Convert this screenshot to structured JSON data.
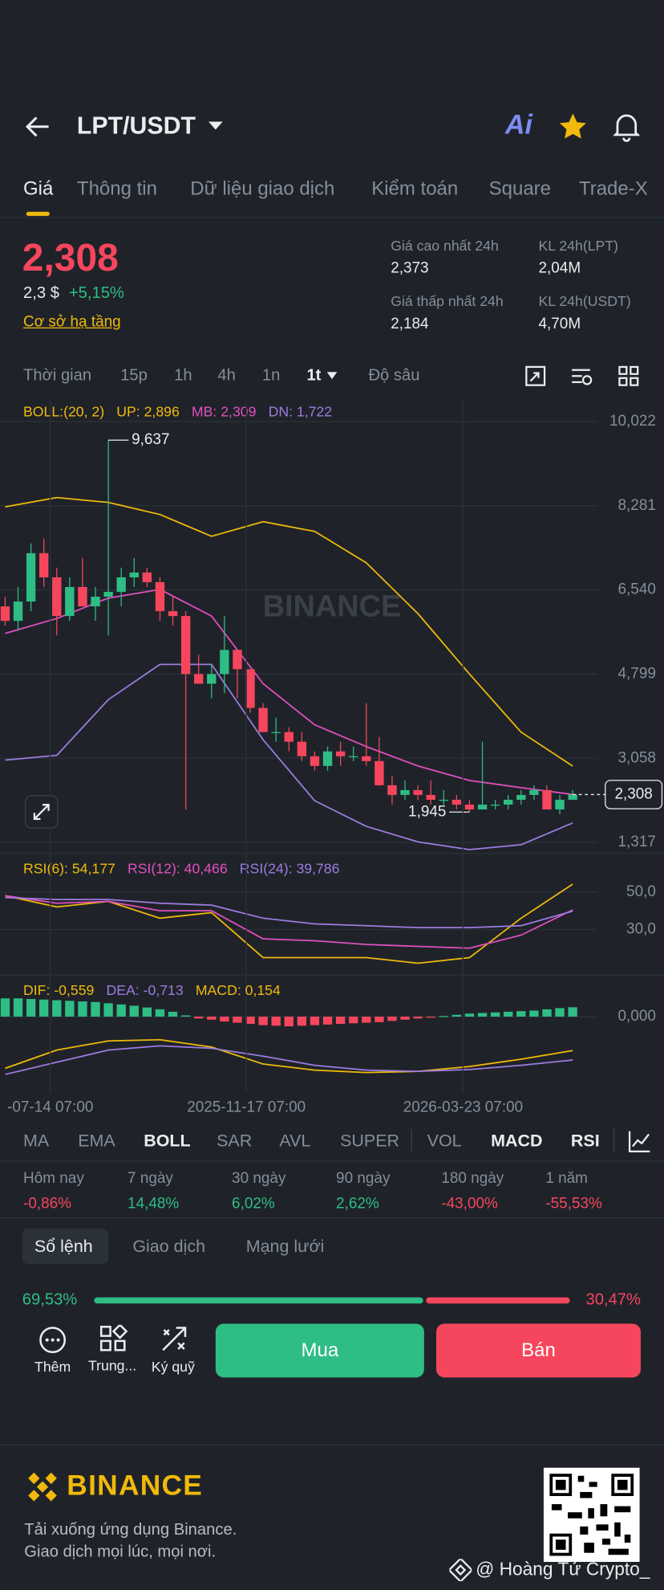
{
  "header": {
    "pair": "LPT/USDT",
    "ai": "Ai"
  },
  "tabs": [
    "Giá",
    "Thông tin",
    "Dữ liệu giao dịch",
    "Kiểm toán",
    "Square",
    "Trade-X"
  ],
  "price": {
    "last": "2,308",
    "usd": "2,3 $",
    "change": "+5,15%",
    "link": "Cơ sở hạ tầng"
  },
  "stats": [
    {
      "label": "Giá cao nhất 24h",
      "value": "2,373"
    },
    {
      "label": "KL 24h(LPT)",
      "value": "2,04M"
    },
    {
      "label": "Giá thấp nhất 24h",
      "value": "2,184"
    },
    {
      "label": "KL 24h(USDT)",
      "value": "4,70M"
    }
  ],
  "intervals": [
    "Thời gian",
    "15p",
    "1h",
    "4h",
    "1n",
    "1t",
    "Độ sâu"
  ],
  "chart_data": [
    {
      "type": "candlestick",
      "indicator": "BOLL:(20, 2)",
      "indicator_color": "#f0b90b",
      "up_color": "#2ebd85",
      "down_color": "#f6465d",
      "xlim": [
        -0.4,
        45.9
      ],
      "ylim": [
        1.09,
        10.46
      ],
      "yticks": [
        {
          "value": 10.022,
          "label": "10,022"
        },
        {
          "value": 8.281,
          "label": "8,281"
        },
        {
          "value": 6.54,
          "label": "6,540"
        },
        {
          "value": 4.799,
          "label": "4,799"
        },
        {
          "value": 3.058,
          "label": "3,058"
        },
        {
          "value": 1.317,
          "label": "1,317"
        }
      ],
      "grid": true,
      "candles": [
        [
          6.2,
          6.4,
          5.8,
          5.9
        ],
        [
          5.9,
          6.6,
          5.7,
          6.3
        ],
        [
          6.3,
          7.5,
          6.1,
          7.3
        ],
        [
          7.3,
          7.6,
          6.6,
          6.8
        ],
        [
          6.8,
          7.0,
          5.6,
          6.0
        ],
        [
          6.0,
          6.8,
          5.9,
          6.6
        ],
        [
          6.6,
          7.2,
          6.2,
          6.2
        ],
        [
          6.2,
          6.6,
          5.9,
          6.4
        ],
        [
          6.4,
          9.637,
          5.6,
          6.5
        ],
        [
          6.5,
          7.0,
          6.2,
          6.8
        ],
        [
          6.8,
          7.2,
          6.6,
          6.9
        ],
        [
          6.9,
          7.0,
          6.6,
          6.7
        ],
        [
          6.7,
          6.8,
          5.9,
          6.1
        ],
        [
          6.1,
          6.4,
          5.8,
          6.0
        ],
        [
          6.0,
          6.1,
          2.0,
          4.8
        ],
        [
          4.8,
          5.2,
          4.6,
          4.6
        ],
        [
          4.6,
          5.0,
          4.3,
          4.8
        ],
        [
          4.8,
          6.0,
          4.4,
          5.3
        ],
        [
          5.3,
          5.3,
          4.3,
          4.9
        ],
        [
          4.9,
          4.9,
          4.0,
          4.1
        ],
        [
          4.1,
          4.2,
          3.6,
          3.6
        ],
        [
          3.6,
          3.9,
          3.4,
          3.6
        ],
        [
          3.6,
          3.7,
          3.2,
          3.4
        ],
        [
          3.4,
          3.6,
          3.0,
          3.1
        ],
        [
          3.1,
          3.2,
          2.8,
          2.9
        ],
        [
          2.9,
          3.3,
          2.8,
          3.2
        ],
        [
          3.2,
          3.4,
          2.9,
          3.1
        ],
        [
          3.1,
          3.3,
          3.0,
          3.1
        ],
        [
          3.1,
          4.2,
          2.9,
          3.0
        ],
        [
          3.0,
          3.5,
          2.5,
          2.5
        ],
        [
          2.5,
          2.7,
          2.1,
          2.3
        ],
        [
          2.3,
          2.6,
          2.2,
          2.4
        ],
        [
          2.4,
          2.5,
          2.2,
          2.3
        ],
        [
          2.3,
          2.6,
          2.1,
          2.2
        ],
        [
          2.2,
          2.4,
          2.1,
          2.2
        ],
        [
          2.2,
          2.3,
          2.0,
          2.1
        ],
        [
          2.1,
          2.2,
          1.945,
          2.0
        ],
        [
          2.0,
          3.4,
          2.0,
          2.1
        ],
        [
          2.1,
          2.2,
          2.0,
          2.1
        ],
        [
          2.1,
          2.3,
          2.0,
          2.2
        ],
        [
          2.2,
          2.4,
          2.1,
          2.3
        ],
        [
          2.3,
          2.5,
          2.2,
          2.4
        ],
        [
          2.4,
          2.5,
          2.0,
          2.0
        ],
        [
          2.0,
          2.3,
          1.9,
          2.2
        ],
        [
          2.2,
          2.4,
          2.2,
          2.308
        ]
      ],
      "x": [
        0,
        4,
        8,
        12,
        16,
        20,
        24,
        28,
        32,
        36,
        40,
        44
      ],
      "series": [
        {
          "name": "UP: 2,896",
          "color": "#f0b90b",
          "values": [
            8.26,
            8.45,
            8.35,
            8.1,
            7.65,
            7.95,
            7.75,
            7.1,
            6.05,
            4.8,
            3.6,
            2.896
          ]
        },
        {
          "name": "MB: 2,309",
          "color": "#e04fbf",
          "values": [
            5.64,
            5.95,
            6.37,
            6.55,
            6.0,
            4.6,
            3.75,
            3.3,
            2.9,
            2.6,
            2.45,
            2.309
          ]
        },
        {
          "name": "DN: 1,722",
          "color": "#9d7be0",
          "values": [
            3.02,
            3.12,
            4.27,
            5.0,
            5.0,
            3.44,
            2.18,
            1.65,
            1.33,
            1.17,
            1.27,
            1.722
          ]
        }
      ],
      "annotations": [
        {
          "x": 8,
          "value": 9.637,
          "label": "9,637"
        },
        {
          "x": 36,
          "value": 1.945,
          "label": "1,945"
        }
      ],
      "last": {
        "value": 2.308,
        "label": "2,308"
      }
    },
    {
      "type": "line",
      "xlim": [
        -0.4,
        45.9
      ],
      "ylim": [
        5.7,
        56.5
      ],
      "yticks": [
        {
          "value": 50,
          "label": "50,0"
        },
        {
          "value": 30,
          "label": "30,0"
        }
      ],
      "x": [
        0,
        4,
        8,
        12,
        16,
        20,
        24,
        28,
        32,
        36,
        40,
        44
      ],
      "series": [
        {
          "name": "RSI(6): 54,177",
          "color": "#f0b90b",
          "values": [
            48,
            42,
            45,
            36,
            39,
            15,
            15,
            15,
            12,
            15,
            36,
            54.177
          ]
        },
        {
          "name": "RSI(12): 40,466",
          "color": "#e04fbf",
          "values": [
            48,
            44,
            45,
            40,
            40,
            25,
            24,
            22,
            21,
            20,
            27,
            40.466
          ]
        },
        {
          "name": "RSI(24): 39,786",
          "color": "#9d7be0",
          "values": [
            47,
            46,
            46,
            44,
            43,
            36,
            33,
            32,
            31,
            31,
            32,
            39.786
          ]
        }
      ]
    },
    {
      "type": "combo",
      "xlim": [
        -0.4,
        45.9
      ],
      "ylim": [
        -1.25,
        0.3
      ],
      "yticks": [
        {
          "value": 0,
          "label": "0,000"
        }
      ],
      "xticks": [
        {
          "value": 3.5,
          "label": "-07-14 07:00"
        },
        {
          "value": 18.7,
          "label": "2025-11-17 07:00"
        },
        {
          "value": 35.5,
          "label": "2026-03-23 07:00"
        }
      ],
      "up_color": "#2ebd85",
      "down_color": "#f6465d",
      "histogram_name": "MACD: 0,154",
      "histogram_label_color": "#f0b90b",
      "histogram": [
        0.3,
        0.3,
        0.29,
        0.28,
        0.27,
        0.26,
        0.25,
        0.24,
        0.22,
        0.2,
        0.18,
        0.15,
        0.12,
        0.08,
        0.02,
        -0.03,
        -0.05,
        -0.08,
        -0.1,
        -0.12,
        -0.14,
        -0.15,
        -0.16,
        -0.15,
        -0.14,
        -0.13,
        -0.12,
        -0.11,
        -0.1,
        -0.09,
        -0.07,
        -0.05,
        -0.03,
        -0.01,
        0.01,
        0.03,
        0.05,
        0.06,
        0.07,
        0.08,
        0.09,
        0.1,
        0.12,
        0.14,
        0.154
      ],
      "x": [
        0,
        4,
        8,
        12,
        16,
        20,
        24,
        28,
        32,
        36,
        40,
        44
      ],
      "series": [
        {
          "name": "DIF: -0,559",
          "color": "#f0b90b",
          "values": [
            -0.85,
            -0.55,
            -0.4,
            -0.38,
            -0.5,
            -0.78,
            -0.88,
            -0.92,
            -0.9,
            -0.82,
            -0.7,
            -0.559
          ]
        },
        {
          "name": "DEA: -0,713",
          "color": "#9d7be0",
          "values": [
            -0.95,
            -0.75,
            -0.55,
            -0.48,
            -0.52,
            -0.65,
            -0.8,
            -0.88,
            -0.9,
            -0.87,
            -0.8,
            -0.713
          ]
        }
      ]
    }
  ],
  "indicators": [
    "MA",
    "EMA",
    "BOLL",
    "SAR",
    "AVL",
    "SUPER",
    "VOL",
    "MACD",
    "RSI"
  ],
  "performance": [
    {
      "label": "Hôm nay",
      "value": "-0,86%",
      "color": "#f6465d"
    },
    {
      "label": "7 ngày",
      "value": "14,48%",
      "color": "#2ebd85"
    },
    {
      "label": "30 ngày",
      "value": "6,02%",
      "color": "#2ebd85"
    },
    {
      "label": "90 ngày",
      "value": "2,62%",
      "color": "#2ebd85"
    },
    {
      "label": "180 ngày",
      "value": "-43,00%",
      "color": "#f6465d"
    },
    {
      "label": "1 năm",
      "value": "-55,53%",
      "color": "#f6465d"
    }
  ],
  "book_tabs": [
    "Sổ lệnh",
    "Giao dịch",
    "Mạng lưới"
  ],
  "ratio": {
    "buy": {
      "value": 69.53,
      "label": "69,53%"
    },
    "sell": {
      "value": 30.47,
      "label": "30,47%"
    }
  },
  "actions": [
    "Thêm",
    "Trung...",
    "Ký quỹ"
  ],
  "buttons": {
    "buy": "Mua",
    "sell": "Bán"
  },
  "footer": {
    "brand": "BINANCE",
    "line1": "Tải xuống ứng dụng Binance.",
    "line2": "Giao dịch mọi lúc, mọi nơi.",
    "credit": "@ Hoàng Tử Crypto_"
  }
}
